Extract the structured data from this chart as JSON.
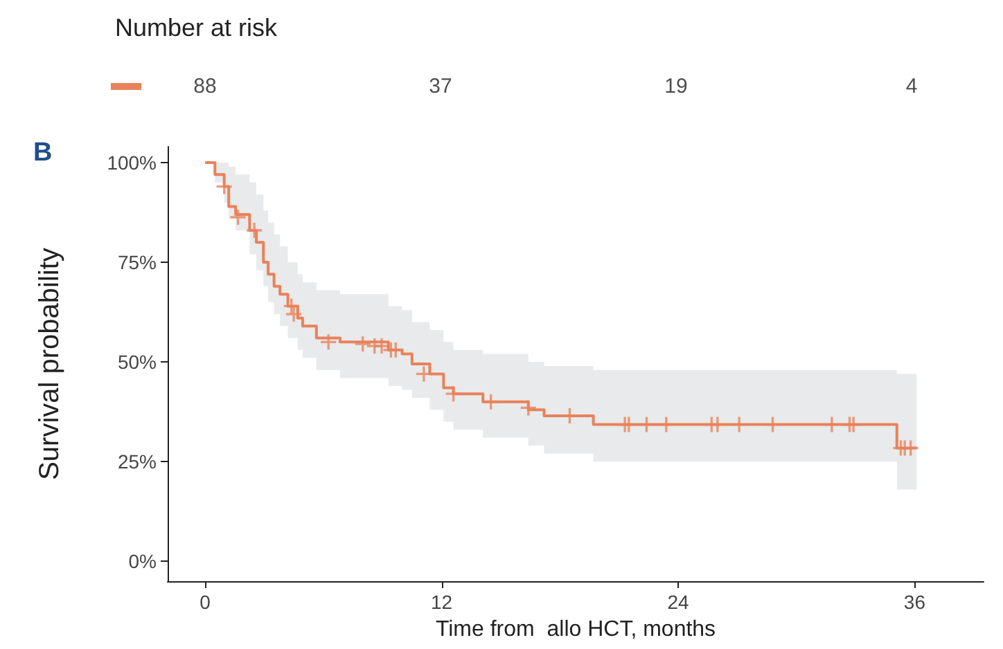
{
  "chart_data": [
    {
      "type": "other",
      "title": "Number at risk",
      "color": "#e8825a",
      "categories": [
        null,
        null,
        null,
        null
      ],
      "values": [
        88,
        37,
        19,
        4
      ],
      "data_labels": true
    },
    {
      "type": "step",
      "annotations": [
        "B"
      ],
      "xlabel": "Time from  allo HCT, months",
      "ylabel": "Survival probability",
      "xlim": [
        -1.9,
        39.5
      ],
      "xticks": [
        0,
        12,
        24,
        36
      ],
      "ylim": [
        -5,
        104
      ],
      "yticks": [
        {
          "value": 0,
          "label": "0%"
        },
        {
          "value": 25,
          "label": "25%"
        },
        {
          "value": 50,
          "label": "50%"
        },
        {
          "value": 75,
          "label": "75%"
        },
        {
          "value": 100,
          "label": "100%"
        }
      ],
      "grid": false,
      "series": [
        {
          "type": "step",
          "color": "#e8825a",
          "marker": "none",
          "x": [
            0,
            0.5,
            0.97,
            1.2,
            1.55,
            2.26,
            2.6,
            2.96,
            3.2,
            3.5,
            3.8,
            4.2,
            4.7,
            4.95,
            5.65,
            6.85,
            9.3,
            10.0,
            10.5,
            11.4,
            12.1,
            12.6,
            14.1,
            16.4,
            17.2,
            19.7,
            35.1,
            36.1
          ],
          "values": [
            100,
            97,
            94,
            89,
            87,
            83,
            80,
            75,
            72,
            69,
            67,
            64,
            61,
            59,
            56,
            55,
            53,
            52,
            49.5,
            47,
            43.5,
            42,
            40,
            38,
            36.5,
            34.3,
            28.4,
            28.4
          ],
          "lower": [
            100,
            95,
            90,
            86,
            83,
            77,
            73,
            69,
            65,
            62,
            59,
            56,
            53,
            51,
            48,
            46,
            44,
            43,
            41,
            38,
            35,
            33,
            31,
            29,
            27,
            25,
            18,
            18
          ],
          "upper": [
            100,
            100,
            100,
            99,
            97,
            95,
            92,
            88,
            85,
            82,
            79,
            75,
            72,
            70,
            68,
            67,
            64,
            63,
            60,
            58,
            55,
            53,
            52,
            50,
            49,
            48,
            47,
            47
          ]
        },
        {
          "type": "scatter",
          "color": "#e8825a",
          "marker": "cross",
          "x": [
            0.97,
            1.67,
            2.5,
            4.38,
            4.5,
            6.26,
            8.0,
            8.6,
            8.96,
            9.43,
            9.67,
            11.1,
            12.6,
            14.5,
            16.4,
            18.5,
            21.3,
            21.5,
            22.4,
            23.4,
            25.7,
            26.0,
            27.1,
            28.8,
            31.8,
            32.7,
            32.9,
            35.3,
            35.5,
            35.8
          ],
          "values": [
            94,
            86.3,
            83,
            64,
            62,
            55,
            54.5,
            54,
            54,
            53,
            53,
            47,
            42,
            40,
            38.5,
            36.5,
            34.3,
            34.3,
            34.3,
            34.3,
            34.3,
            34.3,
            34.3,
            34.3,
            34.3,
            34.3,
            34.3,
            28.4,
            28.4,
            28.4
          ]
        }
      ]
    }
  ]
}
